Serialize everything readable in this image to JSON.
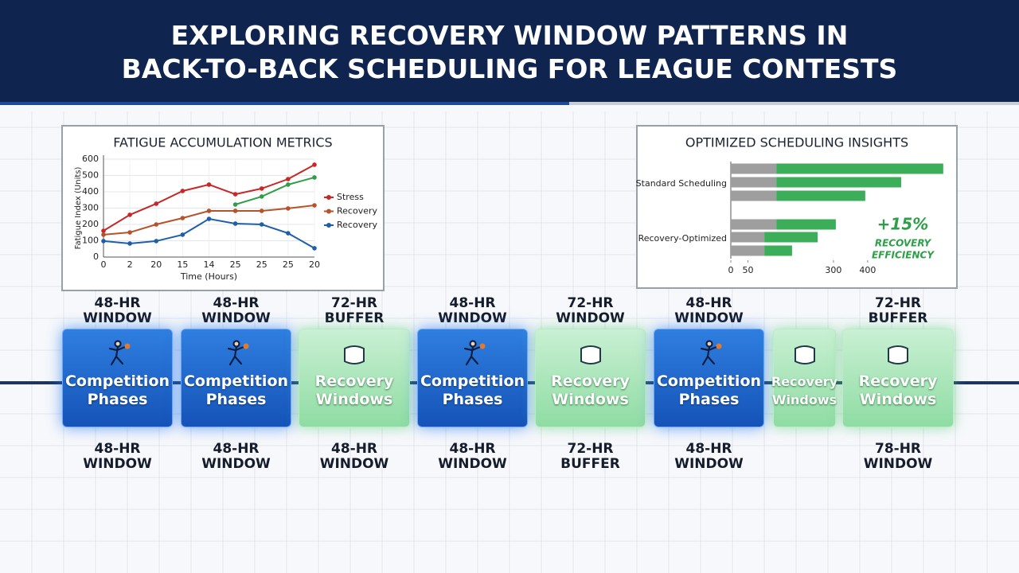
{
  "header": {
    "title": [
      "EXPLORING RECOVERY WINDOW PATTERNS IN",
      "BACK-TO-BACK SCHEDULING FOR LEAGUE CONTESTS"
    ]
  },
  "chart_data": [
    {
      "type": "line",
      "title": "FATIGUE ACCUMULATION METRICS",
      "x_label": "Time (Hours)",
      "y_label": "Fatigue Index (Units)",
      "categories": [
        "0",
        "2",
        "20",
        "15",
        "14",
        "25",
        "25",
        "25",
        "20"
      ],
      "ylim": [
        0,
        600
      ],
      "yticks": [
        0,
        100,
        200,
        300,
        400,
        500,
        600
      ],
      "grid": true,
      "series": [
        {
          "name": "Stress",
          "color": "#c62828",
          "values": [
            161,
            259,
            327,
            405,
            444,
            385,
            420,
            478,
            566
          ]
        },
        {
          "name": "Recovery",
          "color": "#b5532a",
          "values": [
            137,
            151,
            200,
            239,
            283,
            283,
            283,
            298,
            317
          ]
        },
        {
          "name": "Recovery",
          "color": "#1e5fa8",
          "values": [
            98,
            83,
            98,
            137,
            234,
            205,
            200,
            146,
            54
          ]
        },
        {
          "color": "#2e9e48",
          "values": [
            null,
            null,
            null,
            null,
            null,
            322,
            371,
            444,
            488
          ]
        }
      ]
    },
    {
      "type": "bar",
      "orientation": "horizontal",
      "stacked": true,
      "title": "OPTIMIZED SCHEDULING INSIGHTS",
      "categories": [
        null,
        "Standard Scheduling",
        null,
        null,
        "Recovery-Optimized",
        null
      ],
      "xlim": [
        0,
        640
      ],
      "xticks": [
        0,
        50,
        300,
        400
      ],
      "series": [
        {
          "color": "#9e9e9e",
          "values": [
            133,
            133,
            133,
            133,
            98,
            98
          ]
        },
        {
          "color": "#3cae5a",
          "values": [
            488,
            365,
            260,
            174,
            156,
            81
          ]
        }
      ],
      "annotation": {
        "value": "+15%",
        "text": [
          "RECOVERY",
          "EFFICIENCY"
        ]
      }
    }
  ],
  "timeline": {
    "blocks": [
      {
        "top": "48-HR WINDOW",
        "title": "Competition Phases",
        "bottom": "48-HR WINDOW",
        "kind": "competition"
      },
      {
        "top": "48-HR WINDOW",
        "title": "Competition Phases",
        "bottom": "48-HR WINDOW",
        "kind": "competition"
      },
      {
        "top": "72-HR BUFFER",
        "title": "Recovery Windows",
        "bottom": "48-HR WINDOW",
        "kind": "recovery"
      },
      {
        "top": "48-HR WINDOW",
        "title": "Competition Phases",
        "bottom": "48-HR WINDOW",
        "kind": "competition"
      },
      {
        "top": "72-HR WINDOW",
        "title": "Recovery Windows",
        "bottom": "72-HR BUFFER",
        "kind": "recovery"
      },
      {
        "top": "48-HR WINDOW",
        "title": "Competition Phases",
        "bottom": "48-HR WINDOW",
        "kind": "competition"
      },
      {
        "top": null,
        "title": "Recovery Windows",
        "bottom": null,
        "kind": "recovery"
      },
      {
        "top": "72-HR BUFFER",
        "title": "Recovery Windows",
        "bottom": "78-HR WINDOW",
        "kind": "recovery"
      }
    ]
  }
}
